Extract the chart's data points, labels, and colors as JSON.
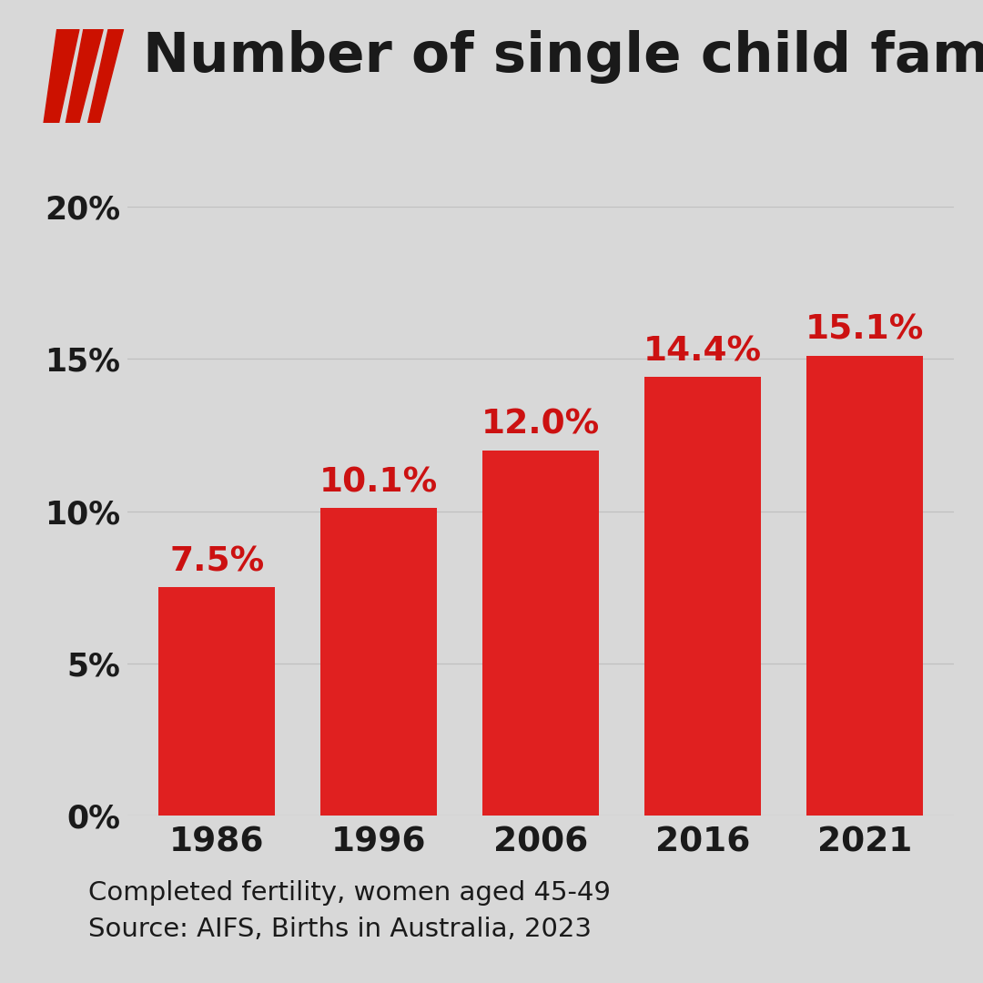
{
  "title": "Number of single child families",
  "categories": [
    "1986",
    "1996",
    "2006",
    "2016",
    "2021"
  ],
  "values": [
    7.5,
    10.1,
    12.0,
    14.4,
    15.1
  ],
  "labels": [
    "7.5%",
    "10.1%",
    "12.0%",
    "14.4%",
    "15.1%"
  ],
  "bar_color": "#e02020",
  "label_color": "#cc1111",
  "background_color": "#d8d8d8",
  "title_color": "#1a1a1a",
  "tick_label_color": "#1a1a1a",
  "grid_color": "#c0c0c0",
  "yticks": [
    0,
    5,
    10,
    15,
    20
  ],
  "ytick_labels": [
    "0%",
    "5%",
    "10%",
    "15%",
    "20%"
  ],
  "ylim": [
    0,
    20
  ],
  "subtitle1": "Completed fertility, women aged 45-49",
  "subtitle2": "Source: AIFS, Births in Australia, 2023",
  "title_fontsize": 44,
  "bar_label_fontsize": 27,
  "tick_fontsize": 25,
  "subtitle_fontsize": 21,
  "xtick_fontsize": 27,
  "bar_width": 0.72
}
